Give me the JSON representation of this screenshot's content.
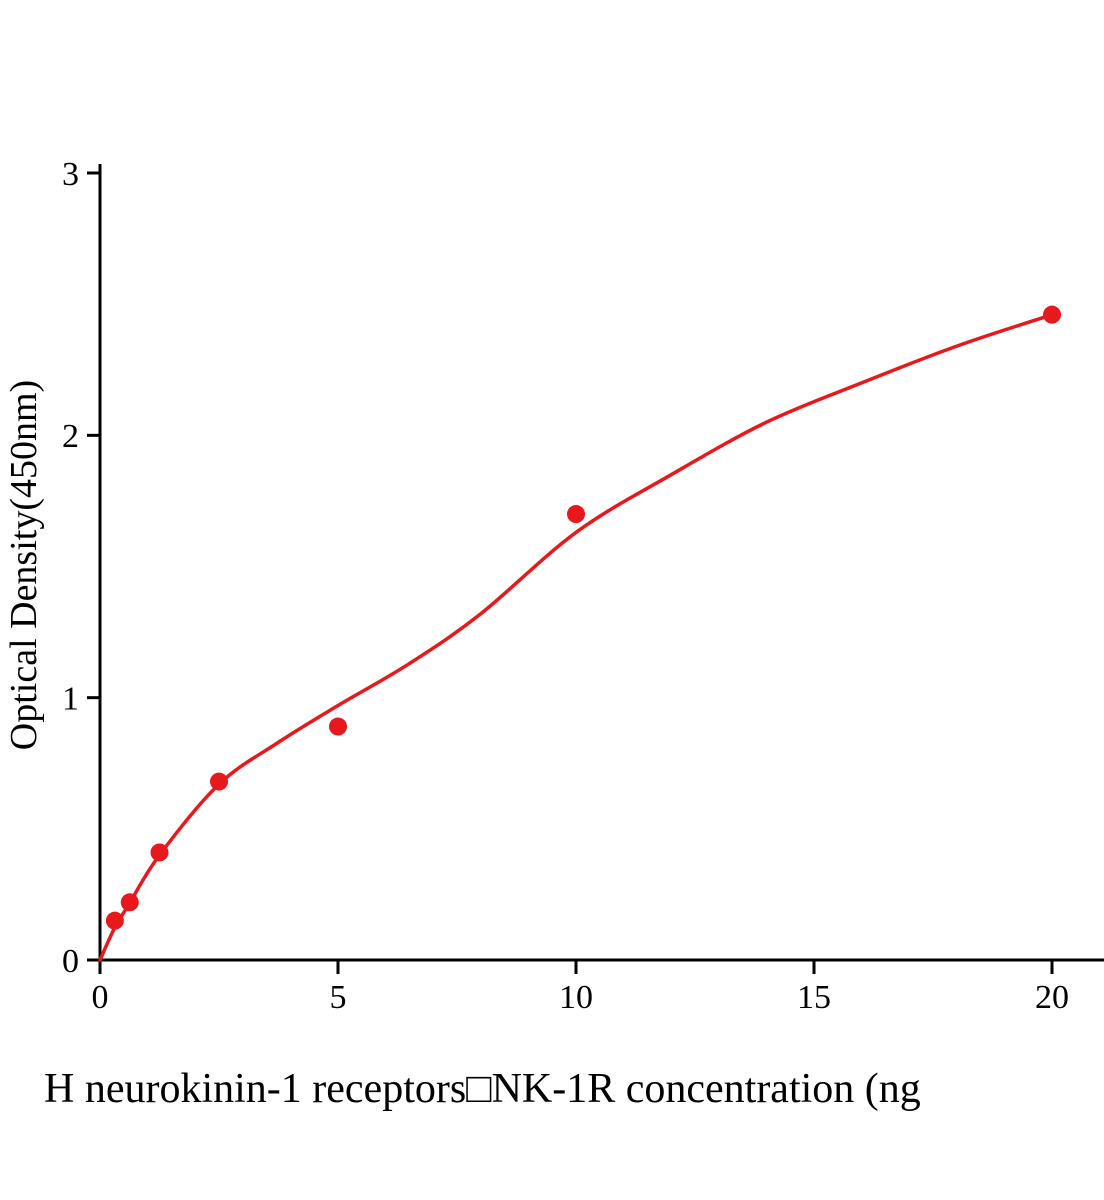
{
  "chart_data": {
    "type": "scatter",
    "title": "",
    "xlabel": "H neurokinin-1 receptors□NK-1R concentration (ng",
    "ylabel": "Optical Density(450nm)",
    "x": [
      0.3125,
      0.625,
      1.25,
      2.5,
      5,
      10,
      20
    ],
    "y": [
      0.15,
      0.22,
      0.41,
      0.68,
      0.89,
      1.7,
      2.46
    ],
    "xticks": [
      0,
      5,
      10,
      15,
      20
    ],
    "yticks": [
      0,
      1,
      2,
      3
    ],
    "xlim": [
      0,
      21.1
    ],
    "ylim": [
      0,
      3
    ],
    "legend": "none",
    "grid": false,
    "curve_fit": [
      [
        0,
        0
      ],
      [
        0.3,
        0.12
      ],
      [
        0.6,
        0.21
      ],
      [
        1.25,
        0.4
      ],
      [
        2.5,
        0.67
      ],
      [
        3.75,
        0.83
      ],
      [
        5,
        0.97
      ],
      [
        6.5,
        1.13
      ],
      [
        8,
        1.32
      ],
      [
        10,
        1.63
      ],
      [
        12,
        1.85
      ],
      [
        14,
        2.05
      ],
      [
        16,
        2.2
      ],
      [
        18,
        2.34
      ],
      [
        20,
        2.46
      ]
    ],
    "point_color": "#e8191c",
    "line_color": "#e8191c",
    "axis_color": "#000000",
    "marker_radius": 9
  }
}
